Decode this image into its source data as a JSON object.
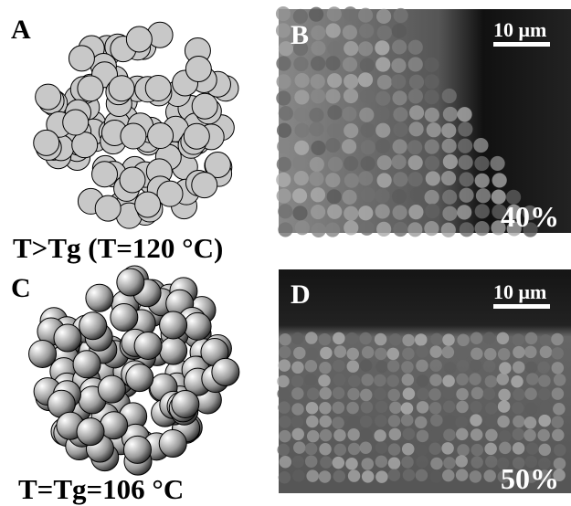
{
  "panels": [
    {
      "label": "A",
      "caption": "T>Tg (T=120 °C)"
    },
    {
      "label": "B",
      "scale": "10 μm",
      "fraction": "40%"
    },
    {
      "label": "C",
      "caption": "T=Tg=106 °C"
    },
    {
      "label": "D",
      "scale": "10 μm",
      "fraction": "50%"
    }
  ]
}
